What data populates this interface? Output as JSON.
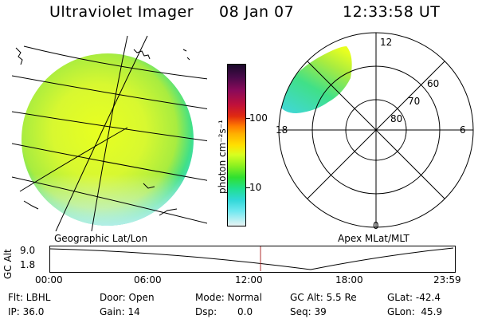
{
  "header": {
    "instrument": "Ultraviolet Imager",
    "date": "08 Jan 07",
    "time": "12:33:58 UT"
  },
  "colorbar": {
    "label": "photon cm⁻²s⁻¹",
    "ticks": [
      "100",
      "10"
    ],
    "colors": [
      "#1a0a2a",
      "#4a0a4a",
      "#8a0a5a",
      "#c0103a",
      "#e02a10",
      "#ff7a00",
      "#ffb000",
      "#ffe000",
      "#d8ff20",
      "#8af020",
      "#30e030",
      "#20e090",
      "#30d8d8",
      "#70e8f0",
      "#b8f4f8",
      "#e8f4f4"
    ]
  },
  "left_panel": {
    "caption": "Geographic Lat/Lon"
  },
  "right_panel": {
    "caption": "Apex MLat/MLT",
    "mlt_labels": {
      "top": "12",
      "left": "18",
      "right": "6",
      "bottom": "0"
    },
    "lat_labels": [
      "60",
      "70",
      "80"
    ]
  },
  "altitude_plot": {
    "ylabel": "GC Alt",
    "yticks": [
      "9.0",
      "1.8"
    ],
    "xticks": [
      "00:00",
      "06:00",
      "12:00",
      "18:00",
      "23:59"
    ],
    "marker_time": "12:33:58"
  },
  "info": {
    "flt": "Flt: LBHL",
    "ip": "IP: 36.0",
    "door": "Door: Open",
    "gain": "Gain: 14",
    "mode": "Mode: Normal",
    "dsp": "Dsp:",
    "dsp_value": "0.0",
    "gcalt": "GC Alt: 5.5 Re",
    "seq": "Seq: 39",
    "glat": "GLat: -42.4",
    "glon": "GLon:  45.9"
  }
}
